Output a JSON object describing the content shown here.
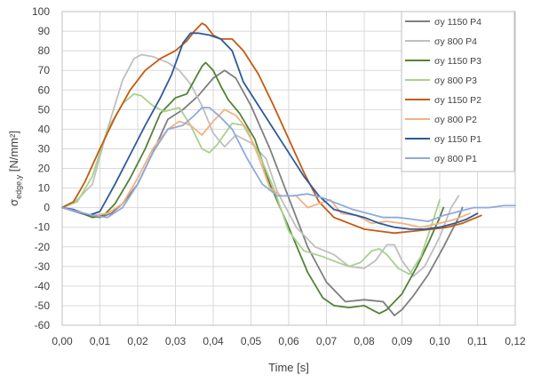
{
  "chart_data": {
    "type": "line",
    "xlabel": "Time [s]",
    "ylabel_main": "σ",
    "ylabel_sub": "edge,y",
    "ylabel_unit": " [N/mm²]",
    "xlim": [
      0,
      0.12
    ],
    "ylim": [
      -60,
      100
    ],
    "xticks": [
      "0,00",
      "0,01",
      "0,02",
      "0,03",
      "0,04",
      "0,05",
      "0,06",
      "0,07",
      "0,08",
      "0,09",
      "0,10",
      "0,11",
      "0,12"
    ],
    "yticks": [
      "-60",
      "-50",
      "-40",
      "-30",
      "-20",
      "-10",
      "0",
      "10",
      "20",
      "30",
      "40",
      "50",
      "60",
      "70",
      "80",
      "90",
      "100"
    ],
    "grid": true,
    "legend_position": "top-right",
    "series": [
      {
        "name": "σy 1150 P4",
        "color": "#7f7f7f",
        "points": [
          [
            0,
            0
          ],
          [
            0.005,
            -3
          ],
          [
            0.01,
            -5
          ],
          [
            0.013,
            -3
          ],
          [
            0.016,
            2
          ],
          [
            0.02,
            12
          ],
          [
            0.024,
            28
          ],
          [
            0.028,
            45
          ],
          [
            0.032,
            50
          ],
          [
            0.036,
            57
          ],
          [
            0.04,
            66
          ],
          [
            0.043,
            70
          ],
          [
            0.046,
            66
          ],
          [
            0.05,
            52
          ],
          [
            0.055,
            30
          ],
          [
            0.06,
            5
          ],
          [
            0.065,
            -20
          ],
          [
            0.07,
            -38
          ],
          [
            0.075,
            -48
          ],
          [
            0.08,
            -47
          ],
          [
            0.085,
            -48
          ],
          [
            0.088,
            -55
          ],
          [
            0.09,
            -52
          ],
          [
            0.093,
            -45
          ],
          [
            0.097,
            -34
          ],
          [
            0.101,
            -20
          ],
          [
            0.105,
            -5
          ],
          [
            0.106,
            0
          ]
        ]
      },
      {
        "name": "σy 800 P4",
        "color": "#bfbfbf",
        "points": [
          [
            0,
            0
          ],
          [
            0.004,
            4
          ],
          [
            0.008,
            12
          ],
          [
            0.012,
            40
          ],
          [
            0.016,
            65
          ],
          [
            0.019,
            76
          ],
          [
            0.021,
            78
          ],
          [
            0.024,
            77
          ],
          [
            0.028,
            74
          ],
          [
            0.031,
            70
          ],
          [
            0.034,
            63
          ],
          [
            0.037,
            52
          ],
          [
            0.04,
            38
          ],
          [
            0.043,
            31
          ],
          [
            0.046,
            37
          ],
          [
            0.05,
            33
          ],
          [
            0.054,
            25
          ],
          [
            0.057,
            8
          ],
          [
            0.062,
            -10
          ],
          [
            0.067,
            -20
          ],
          [
            0.072,
            -24
          ],
          [
            0.076,
            -30
          ],
          [
            0.08,
            -31
          ],
          [
            0.083,
            -27
          ],
          [
            0.086,
            -19
          ],
          [
            0.088,
            -19
          ],
          [
            0.09,
            -27
          ],
          [
            0.093,
            -35
          ],
          [
            0.096,
            -30
          ],
          [
            0.1,
            -15
          ],
          [
            0.103,
            0
          ],
          [
            0.105,
            6
          ]
        ]
      },
      {
        "name": "σy 1150 P3",
        "color": "#548235",
        "points": [
          [
            0,
            0
          ],
          [
            0.004,
            -2
          ],
          [
            0.008,
            -5
          ],
          [
            0.011,
            -4
          ],
          [
            0.014,
            2
          ],
          [
            0.018,
            15
          ],
          [
            0.022,
            30
          ],
          [
            0.026,
            48
          ],
          [
            0.03,
            56
          ],
          [
            0.033,
            58
          ],
          [
            0.035,
            65
          ],
          [
            0.037,
            72
          ],
          [
            0.038,
            74
          ],
          [
            0.04,
            70
          ],
          [
            0.042,
            62
          ],
          [
            0.044,
            55
          ],
          [
            0.047,
            48
          ],
          [
            0.051,
            35
          ],
          [
            0.055,
            12
          ],
          [
            0.06,
            -10
          ],
          [
            0.065,
            -33
          ],
          [
            0.069,
            -46
          ],
          [
            0.072,
            -50
          ],
          [
            0.076,
            -51
          ],
          [
            0.08,
            -50
          ],
          [
            0.082,
            -52
          ],
          [
            0.084,
            -54
          ],
          [
            0.086,
            -52
          ],
          [
            0.09,
            -44
          ],
          [
            0.094,
            -30
          ],
          [
            0.097,
            -18
          ],
          [
            0.1,
            -5
          ],
          [
            0.101,
            0
          ]
        ]
      },
      {
        "name": "σy 800 P3",
        "color": "#a9d18e",
        "points": [
          [
            0,
            0
          ],
          [
            0.004,
            3
          ],
          [
            0.008,
            16
          ],
          [
            0.012,
            40
          ],
          [
            0.016,
            53
          ],
          [
            0.019,
            58
          ],
          [
            0.021,
            57
          ],
          [
            0.024,
            52
          ],
          [
            0.027,
            49
          ],
          [
            0.031,
            51
          ],
          [
            0.034,
            42
          ],
          [
            0.037,
            30
          ],
          [
            0.039,
            28
          ],
          [
            0.041,
            32
          ],
          [
            0.045,
            43
          ],
          [
            0.048,
            42
          ],
          [
            0.052,
            28
          ],
          [
            0.056,
            10
          ],
          [
            0.06,
            -12
          ],
          [
            0.064,
            -22
          ],
          [
            0.069,
            -25
          ],
          [
            0.073,
            -28
          ],
          [
            0.076,
            -30
          ],
          [
            0.079,
            -28
          ],
          [
            0.082,
            -22
          ],
          [
            0.084,
            -21
          ],
          [
            0.086,
            -24
          ],
          [
            0.089,
            -31
          ],
          [
            0.092,
            -34
          ],
          [
            0.095,
            -25
          ],
          [
            0.098,
            -8
          ],
          [
            0.1,
            4
          ]
        ]
      },
      {
        "name": "σy  1150 P2",
        "color": "#c55a11",
        "points": [
          [
            0,
            0
          ],
          [
            0.003,
            3
          ],
          [
            0.006,
            13
          ],
          [
            0.01,
            30
          ],
          [
            0.014,
            46
          ],
          [
            0.018,
            60
          ],
          [
            0.022,
            70
          ],
          [
            0.026,
            76
          ],
          [
            0.03,
            80
          ],
          [
            0.033,
            85
          ],
          [
            0.035,
            90
          ],
          [
            0.037,
            94
          ],
          [
            0.038,
            93
          ],
          [
            0.04,
            88
          ],
          [
            0.042,
            86
          ],
          [
            0.045,
            86
          ],
          [
            0.048,
            80
          ],
          [
            0.052,
            68
          ],
          [
            0.056,
            52
          ],
          [
            0.06,
            35
          ],
          [
            0.064,
            18
          ],
          [
            0.068,
            3
          ],
          [
            0.072,
            -5
          ],
          [
            0.076,
            -8
          ],
          [
            0.08,
            -11
          ],
          [
            0.084,
            -12
          ],
          [
            0.088,
            -13
          ],
          [
            0.093,
            -12
          ],
          [
            0.098,
            -11
          ],
          [
            0.102,
            -10
          ],
          [
            0.106,
            -8
          ],
          [
            0.111,
            -4
          ]
        ]
      },
      {
        "name": "σy 800 P2",
        "color": "#f4b183",
        "points": [
          [
            0,
            0
          ],
          [
            0.004,
            -2
          ],
          [
            0.008,
            -4
          ],
          [
            0.012,
            -3
          ],
          [
            0.016,
            2
          ],
          [
            0.02,
            15
          ],
          [
            0.024,
            30
          ],
          [
            0.028,
            40
          ],
          [
            0.031,
            44
          ],
          [
            0.034,
            42
          ],
          [
            0.037,
            37
          ],
          [
            0.04,
            44
          ],
          [
            0.043,
            50
          ],
          [
            0.046,
            47
          ],
          [
            0.049,
            40
          ],
          [
            0.052,
            26
          ],
          [
            0.055,
            10
          ],
          [
            0.058,
            6
          ],
          [
            0.062,
            6
          ],
          [
            0.065,
            0
          ],
          [
            0.068,
            2
          ],
          [
            0.071,
            4
          ],
          [
            0.074,
            -3
          ],
          [
            0.078,
            -4
          ],
          [
            0.082,
            -8
          ],
          [
            0.086,
            -7
          ],
          [
            0.09,
            -8
          ],
          [
            0.095,
            -10
          ],
          [
            0.1,
            -8
          ],
          [
            0.104,
            -6
          ],
          [
            0.108,
            -3
          ]
        ]
      },
      {
        "name": "σy  1150 P1",
        "color": "#2e5a9a",
        "points": [
          [
            0,
            0
          ],
          [
            0.003,
            -1
          ],
          [
            0.007,
            -4
          ],
          [
            0.01,
            -2
          ],
          [
            0.014,
            12
          ],
          [
            0.018,
            27
          ],
          [
            0.022,
            42
          ],
          [
            0.026,
            56
          ],
          [
            0.029,
            68
          ],
          [
            0.032,
            84
          ],
          [
            0.034,
            89
          ],
          [
            0.036,
            89
          ],
          [
            0.039,
            88
          ],
          [
            0.042,
            86
          ],
          [
            0.045,
            80
          ],
          [
            0.048,
            64
          ],
          [
            0.052,
            52
          ],
          [
            0.056,
            40
          ],
          [
            0.06,
            28
          ],
          [
            0.064,
            16
          ],
          [
            0.068,
            6
          ],
          [
            0.072,
            -1
          ],
          [
            0.076,
            -3
          ],
          [
            0.08,
            -5
          ],
          [
            0.084,
            -8
          ],
          [
            0.088,
            -10
          ],
          [
            0.092,
            -11
          ],
          [
            0.096,
            -11
          ],
          [
            0.1,
            -10
          ],
          [
            0.104,
            -8
          ],
          [
            0.107,
            -6
          ],
          [
            0.11,
            -3
          ]
        ]
      },
      {
        "name": "σy 800 P1",
        "color": "#8faadc",
        "points": [
          [
            0,
            0
          ],
          [
            0.004,
            -2
          ],
          [
            0.008,
            -4
          ],
          [
            0.012,
            -5
          ],
          [
            0.016,
            0
          ],
          [
            0.02,
            12
          ],
          [
            0.024,
            28
          ],
          [
            0.028,
            40
          ],
          [
            0.032,
            42
          ],
          [
            0.035,
            47
          ],
          [
            0.037,
            51
          ],
          [
            0.039,
            51
          ],
          [
            0.042,
            46
          ],
          [
            0.045,
            40
          ],
          [
            0.049,
            25
          ],
          [
            0.053,
            12
          ],
          [
            0.057,
            6
          ],
          [
            0.061,
            6
          ],
          [
            0.065,
            7
          ],
          [
            0.069,
            5
          ],
          [
            0.073,
            2
          ],
          [
            0.077,
            -1
          ],
          [
            0.081,
            -3
          ],
          [
            0.085,
            -5
          ],
          [
            0.089,
            -5
          ],
          [
            0.093,
            -6
          ],
          [
            0.097,
            -7
          ],
          [
            0.101,
            -4
          ],
          [
            0.105,
            -2
          ],
          [
            0.109,
            0
          ],
          [
            0.113,
            0
          ],
          [
            0.117,
            1
          ],
          [
            0.12,
            1
          ]
        ]
      }
    ]
  }
}
